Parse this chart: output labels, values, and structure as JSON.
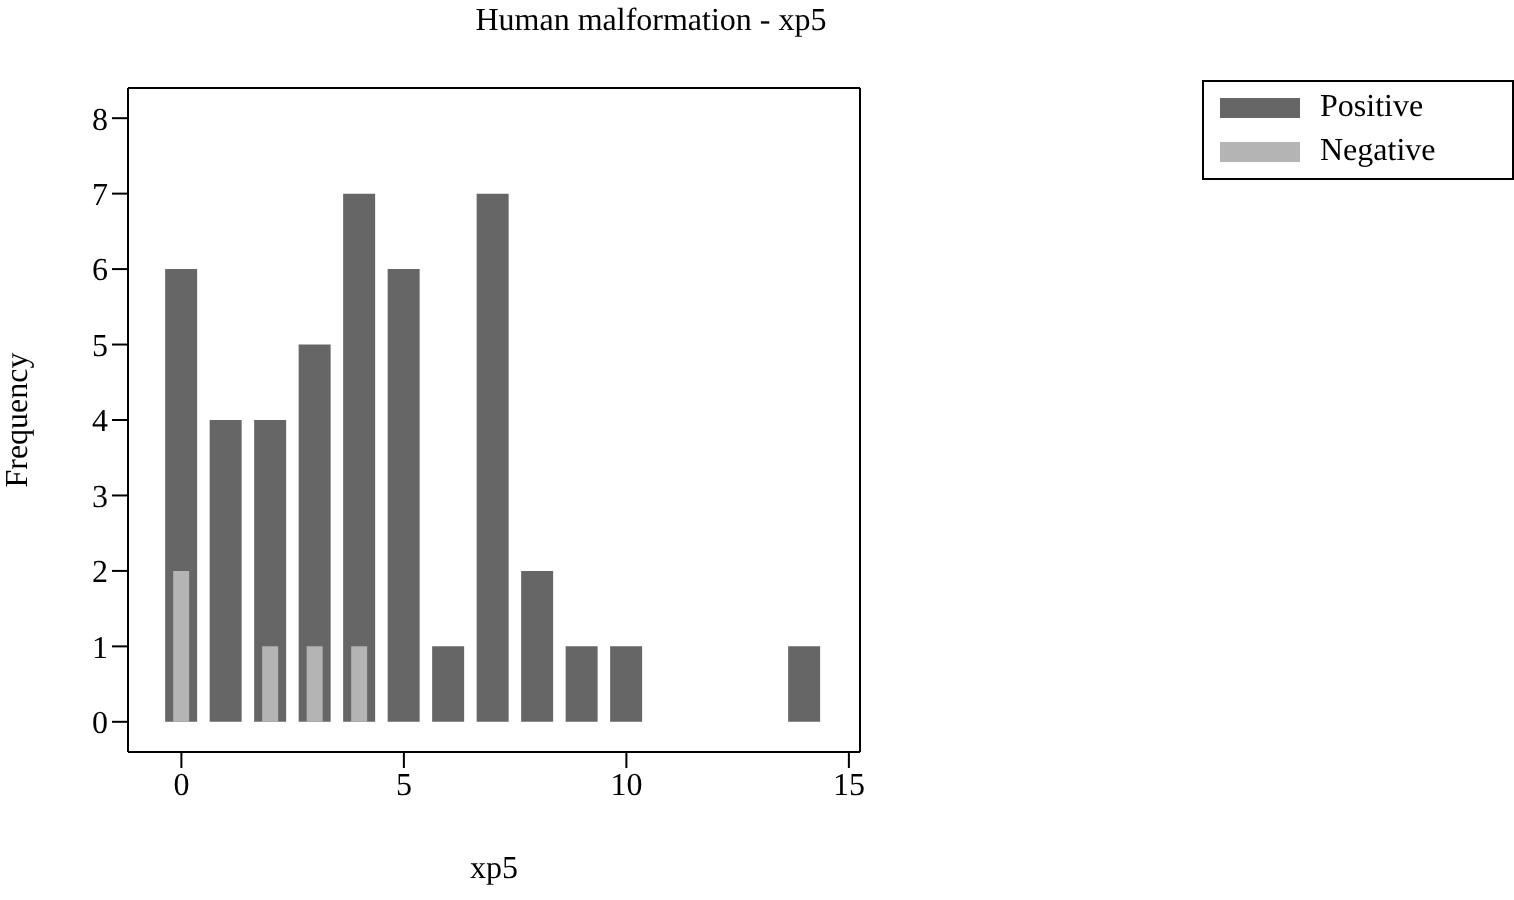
{
  "chart_data": {
    "type": "bar",
    "title": "Human malformation - xp5",
    "xlabel": "xp5",
    "ylabel": "Frequency",
    "series": [
      {
        "name": "Positive",
        "color": "#666666",
        "x": [
          0,
          1,
          2,
          3,
          4,
          5,
          6,
          7,
          8,
          9,
          10,
          14
        ],
        "values": [
          6,
          4,
          4,
          5,
          7,
          6,
          1,
          7,
          2,
          1,
          1,
          1
        ]
      },
      {
        "name": "Negative",
        "color": "#b4b4b4",
        "x": [
          0,
          2,
          3,
          4
        ],
        "values": [
          2,
          1,
          1,
          1
        ]
      }
    ],
    "xlim": [
      -1.2,
      15.25
    ],
    "xticks": [
      0,
      5,
      10,
      15
    ],
    "ylim": [
      -0.4,
      8.4
    ],
    "yticks": [
      0,
      1,
      2,
      3,
      4,
      5,
      6,
      7,
      8
    ],
    "grid": false,
    "legend": "top right"
  }
}
